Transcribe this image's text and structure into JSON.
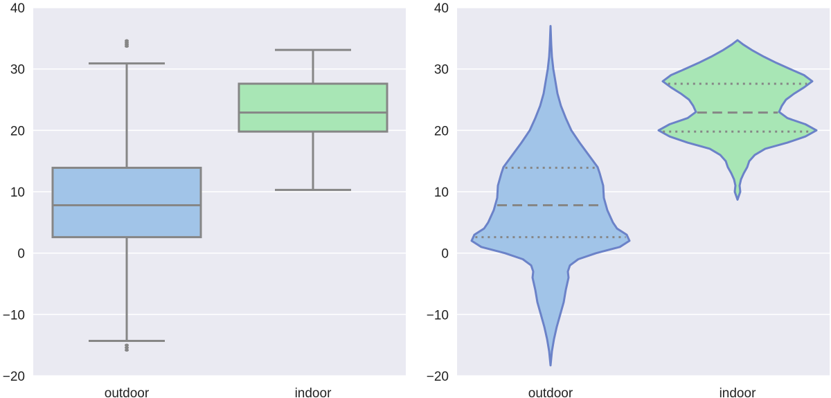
{
  "chart_data": [
    {
      "type": "box",
      "categories": [
        "outdoor",
        "indoor"
      ],
      "ylim": [
        -20,
        40
      ],
      "yticks": [
        -20,
        -10,
        0,
        10,
        20,
        30,
        40
      ],
      "ytick_labels": [
        "−20",
        "−10",
        "0",
        "10",
        "20",
        "30",
        "40"
      ],
      "grid": true,
      "boxes": [
        {
          "category": "outdoor",
          "whisker_low": -14.3,
          "q1": 2.6,
          "median": 7.8,
          "q3": 13.9,
          "whisker_high": 30.9,
          "outliers": [
            34.6,
            34.3,
            34.0,
            33.7,
            -15.0,
            -15.4,
            -15.8
          ],
          "color": "#a1c4e8"
        },
        {
          "category": "indoor",
          "whisker_low": 10.3,
          "q1": 19.8,
          "median": 22.9,
          "q3": 27.6,
          "whisker_high": 33.1,
          "outliers": [],
          "color": "#a8e6b5"
        }
      ]
    },
    {
      "type": "violin",
      "categories": [
        "outdoor",
        "indoor"
      ],
      "ylim": [
        -20,
        40
      ],
      "yticks": [
        -20,
        -10,
        0,
        10,
        20,
        30,
        40
      ],
      "ytick_labels": [
        "−20",
        "−10",
        "0",
        "10",
        "20",
        "30",
        "40"
      ],
      "grid": true,
      "violins": [
        {
          "category": "outdoor",
          "color": "#a1c4e8",
          "q1": 2.6,
          "median": 7.8,
          "q3": 13.9,
          "profile": [
            [
              -18.3,
              0
            ],
            [
              -16,
              2
            ],
            [
              -14,
              5
            ],
            [
              -12,
              9
            ],
            [
              -10,
              14
            ],
            [
              -8,
              19
            ],
            [
              -6,
              22
            ],
            [
              -5,
              24
            ],
            [
              -4,
              26
            ],
            [
              -3,
              25
            ],
            [
              -2,
              28
            ],
            [
              -1,
              40
            ],
            [
              0,
              66
            ],
            [
              1,
              100
            ],
            [
              2,
              114
            ],
            [
              3,
              110
            ],
            [
              4,
              96
            ],
            [
              5,
              90
            ],
            [
              7,
              82
            ],
            [
              9,
              77
            ],
            [
              11,
              76
            ],
            [
              13,
              71
            ],
            [
              14,
              68
            ],
            [
              16,
              55
            ],
            [
              18,
              42
            ],
            [
              20,
              30
            ],
            [
              22,
              22
            ],
            [
              24,
              15
            ],
            [
              26,
              10
            ],
            [
              28,
              7
            ],
            [
              30,
              4
            ],
            [
              32,
              2
            ],
            [
              34,
              1
            ],
            [
              37,
              0
            ]
          ]
        },
        {
          "category": "indoor",
          "color": "#a8e6b5",
          "q1": 19.8,
          "median": 22.9,
          "q3": 27.6,
          "profile": [
            [
              8.7,
              0
            ],
            [
              10,
              4
            ],
            [
              11,
              3
            ],
            [
              12,
              5
            ],
            [
              13,
              9
            ],
            [
              14,
              14
            ],
            [
              15,
              17
            ],
            [
              16,
              25
            ],
            [
              17,
              40
            ],
            [
              18,
              72
            ],
            [
              19,
              98
            ],
            [
              20,
              114
            ],
            [
              21,
              98
            ],
            [
              22,
              72
            ],
            [
              23,
              60
            ],
            [
              24,
              64
            ],
            [
              25,
              70
            ],
            [
              26,
              82
            ],
            [
              27,
              96
            ],
            [
              28,
              108
            ],
            [
              29,
              96
            ],
            [
              30,
              76
            ],
            [
              31,
              56
            ],
            [
              32,
              38
            ],
            [
              33,
              22
            ],
            [
              34,
              8
            ],
            [
              34.7,
              0
            ]
          ]
        }
      ]
    }
  ]
}
